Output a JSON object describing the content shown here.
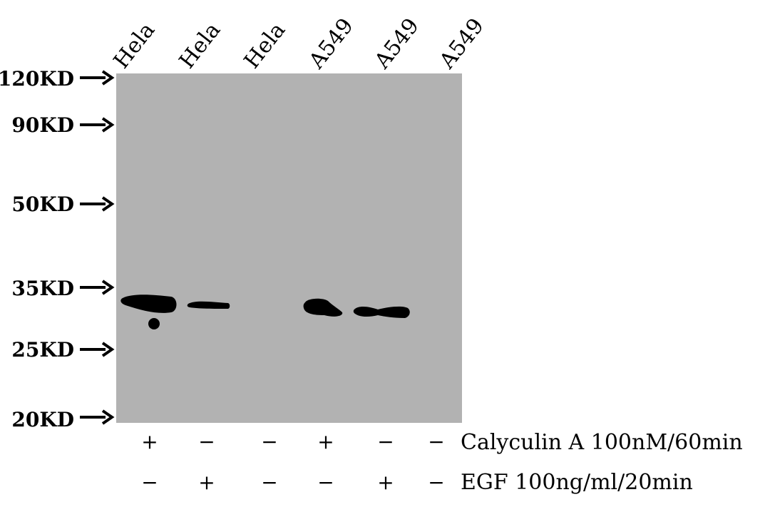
{
  "lanes": [
    {
      "label": "Hela",
      "calyculin": "+",
      "egf": "−"
    },
    {
      "label": "Hela",
      "calyculin": "−",
      "egf": "+"
    },
    {
      "label": "Hela",
      "calyculin": "−",
      "egf": "−"
    },
    {
      "label": "A549",
      "calyculin": "+",
      "egf": "−"
    },
    {
      "label": "A549",
      "calyculin": "−",
      "egf": "+"
    },
    {
      "label": "A549",
      "calyculin": "−",
      "egf": "−"
    }
  ],
  "markers": [
    {
      "label": "120KD"
    },
    {
      "label": "90KD"
    },
    {
      "label": "50KD"
    },
    {
      "label": "35KD"
    },
    {
      "label": "25KD"
    },
    {
      "label": "20KD"
    }
  ],
  "treatments": [
    {
      "label": "Calyculin A 100nM/60min"
    },
    {
      "label": "EGF 100ng/ml/20min"
    }
  ],
  "colors": {
    "membrane": "#b2b2b2",
    "band": "#000000"
  }
}
